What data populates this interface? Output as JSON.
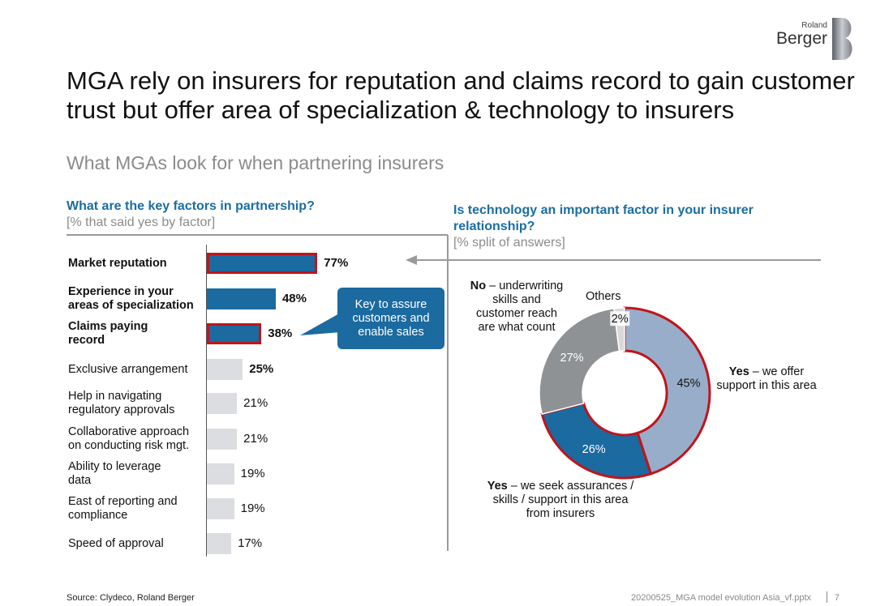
{
  "logo": {
    "small": "Roland",
    "big": "Berger"
  },
  "title": "MGA rely on insurers for reputation and claims record to gain customer trust but offer area of specialization & technology to insurers",
  "subtitle": "What MGAs look for when partnering insurers",
  "left_question": {
    "heading": "What are the key factors in partnership?",
    "sub": "[% that said yes by factor]"
  },
  "right_question": {
    "heading": "Is technology an important factor in your insurer relationship?",
    "sub": "[% split of answers]"
  },
  "callout": "Key to assure customers and enable sales",
  "colors": {
    "blue": "#1b6aa0",
    "grey_bar": "#dcdde0",
    "highlight": "#c0141c",
    "donut_light": "#98adc9",
    "donut_grey": "#8f9295"
  },
  "chart_data": [
    {
      "type": "bar",
      "orientation": "horizontal",
      "title": "What are the key factors in partnership?",
      "subtitle": "[% that said yes by factor]",
      "categories": [
        "Market reputation",
        "Experience in your areas of specialization",
        "Claims paying record",
        "Exclusive arrangement",
        "Help in navigating regulatory approvals",
        "Collaborative approach on conducting risk mgt.",
        "Ability to leverage data",
        "East of reporting and compliance",
        "Speed of approval"
      ],
      "values": [
        77,
        48,
        38,
        25,
        21,
        21,
        19,
        19,
        17
      ],
      "value_labels": [
        "77%",
        "48%",
        "38%",
        "25%",
        "21%",
        "21%",
        "19%",
        "19%",
        "17%"
      ],
      "style": [
        "blue-highlight",
        "blue",
        "blue-highlight",
        "grey-bold",
        "grey",
        "grey",
        "grey",
        "grey",
        "grey"
      ],
      "xlim": [
        0,
        100
      ]
    },
    {
      "type": "pie",
      "donut": true,
      "title": "Is technology an important factor in your insurer relationship?",
      "subtitle": "[% split of answers]",
      "labels": [
        "Yes – we offer support in this area",
        "Yes – we seek assurances / skills / support in this area from insurers",
        "No – underwriting skills and customer reach are what count",
        "Others"
      ],
      "values": [
        45,
        26,
        27,
        2
      ],
      "value_labels": [
        "45%",
        "26%",
        "27%",
        "2%"
      ],
      "colors": [
        "#98adc9",
        "#1b6aa0",
        "#8f9295",
        "#d9d9d9"
      ],
      "highlighted": [
        true,
        true,
        false,
        false
      ]
    }
  ],
  "donut_text": {
    "yes_offer_bold": "Yes",
    "yes_offer_rest": " – we offer support in this area",
    "yes_seek_bold": "Yes",
    "yes_seek_rest": " – we seek assurances / skills / support in this area from insurers",
    "no_bold": "No",
    "no_rest": " – underwriting skills and customer reach are what count",
    "others": "Others"
  },
  "footer": {
    "source": "Source: Clydeco, Roland Berger",
    "file": "20200525_MGA model evolution Asia_vf.pptx",
    "page": "7"
  }
}
